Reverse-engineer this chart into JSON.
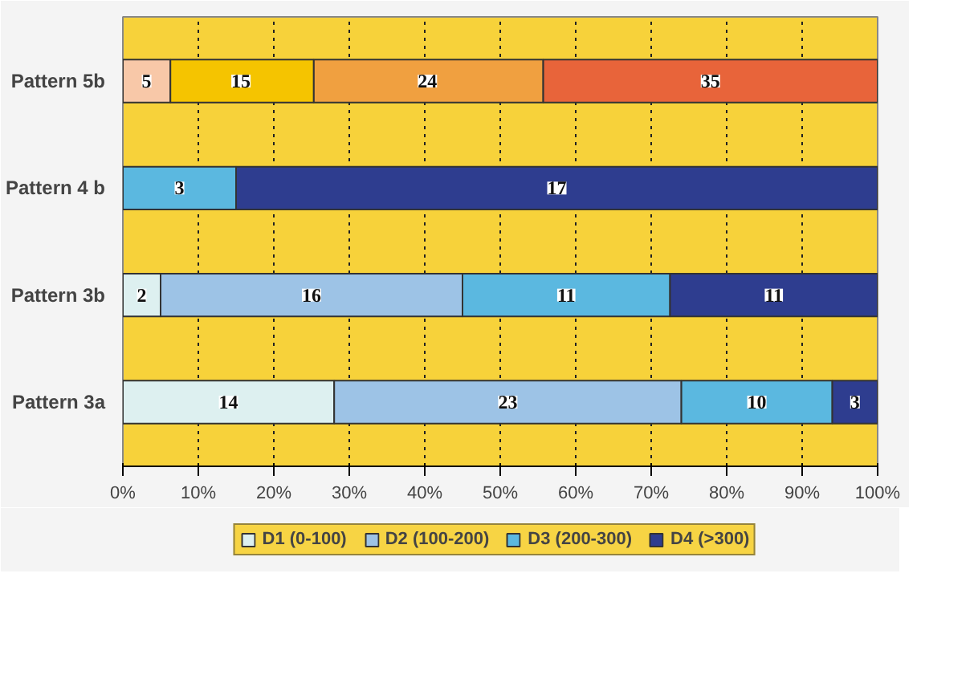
{
  "chart_data": {
    "type": "bar",
    "orientation": "horizontal",
    "stacked": true,
    "categories": [
      "Pattern 5b",
      "Pattern 4 b",
      "Pattern 3b",
      "Pattern 3a"
    ],
    "series": [
      {
        "name": "D1 (0-100)",
        "color": "#ddf0f0",
        "colors": [
          "#f8c8a8",
          "#ddf0f0",
          "#ddf0f0",
          "#ddf0f0"
        ],
        "values": [
          6.3,
          null,
          5,
          28
        ]
      },
      {
        "name": "D2 (100-200)",
        "color": "#9dc3e6",
        "colors": [
          "#f5c400",
          "#9dc3e6",
          "#9dc3e6",
          "#9dc3e6"
        ],
        "values": [
          19.0,
          null,
          40,
          46
        ]
      },
      {
        "name": "D3 (200-300)",
        "color": "#5bb8e0",
        "colors": [
          "#f0a040",
          "#5bb8e0",
          "#5bb8e0",
          "#5bb8e0"
        ],
        "values": [
          30.4,
          15,
          27.5,
          20
        ]
      },
      {
        "name": "D4 (>300)",
        "color": "#2e3d8f",
        "colors": [
          "#e8643a",
          "#2e3d8f",
          "#2e3d8f",
          "#2e3d8f"
        ],
        "values": [
          44.3,
          85,
          27.5,
          6
        ]
      }
    ],
    "annotations": [
      {
        "text": "5",
        "x": 3.15,
        "y": "Pattern 5b"
      },
      {
        "text": "15",
        "x": 15.65,
        "y": "Pattern 5b"
      },
      {
        "text": "24",
        "x": 40.35,
        "y": "Pattern 5b"
      },
      {
        "text": "35",
        "x": 77.85,
        "y": "Pattern 5b"
      },
      {
        "text": "3",
        "x": 7.5,
        "y": "Pattern 4 b"
      },
      {
        "text": "17",
        "x": 57.5,
        "y": "Pattern 4 b"
      },
      {
        "text": "2",
        "x": 2.5,
        "y": "Pattern 3b"
      },
      {
        "text": "16",
        "x": 25,
        "y": "Pattern 3b"
      },
      {
        "text": "11",
        "x": 58.75,
        "y": "Pattern 3b"
      },
      {
        "text": "11",
        "x": 86.25,
        "y": "Pattern 3b"
      },
      {
        "text": "14",
        "x": 14,
        "y": "Pattern 3a"
      },
      {
        "text": "23",
        "x": 51,
        "y": "Pattern 3a"
      },
      {
        "text": "10",
        "x": 84,
        "y": "Pattern 3a"
      },
      {
        "text": "3",
        "x": 97,
        "y": "Pattern 3a"
      }
    ],
    "xlim": [
      0,
      100
    ],
    "xticks": [
      {
        "value": 0,
        "label": "0%"
      },
      {
        "value": 10,
        "label": "10%"
      },
      {
        "value": 20,
        "label": "20%"
      },
      {
        "value": 30,
        "label": "30%"
      },
      {
        "value": 40,
        "label": "40%"
      },
      {
        "value": 50,
        "label": "50%"
      },
      {
        "value": 60,
        "label": "60%"
      },
      {
        "value": 70,
        "label": "70%"
      },
      {
        "value": 80,
        "label": "80%"
      },
      {
        "value": 90,
        "label": "90%"
      },
      {
        "value": 100,
        "label": "100%"
      }
    ],
    "grid": "x",
    "legend": "bottom"
  }
}
